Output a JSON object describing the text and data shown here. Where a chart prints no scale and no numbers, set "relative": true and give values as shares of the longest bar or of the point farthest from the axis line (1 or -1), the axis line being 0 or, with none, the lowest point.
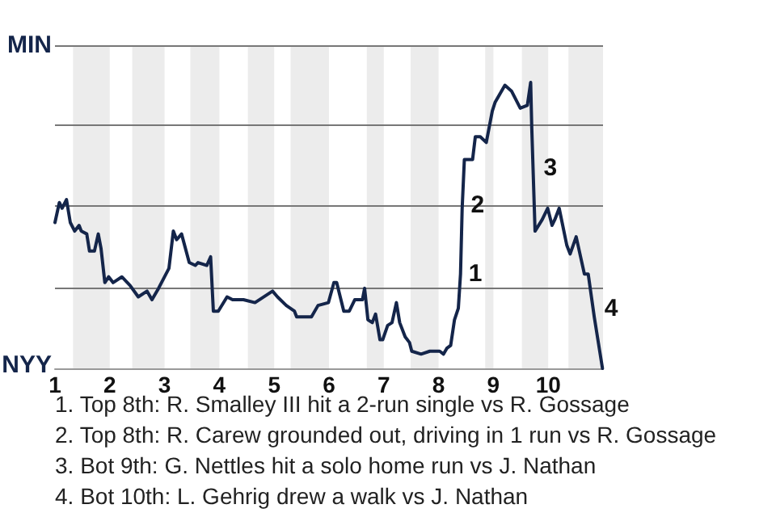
{
  "chart_data": {
    "type": "line",
    "relative": true,
    "x": [
      1.0,
      1.08,
      1.13,
      1.21,
      1.28,
      1.36,
      1.44,
      1.48,
      1.58,
      1.63,
      1.72,
      1.79,
      1.84,
      1.91,
      1.98,
      2.06,
      2.22,
      2.37,
      2.52,
      2.68,
      2.77,
      2.89,
      3.08,
      3.16,
      3.22,
      3.31,
      3.45,
      3.56,
      3.61,
      3.77,
      3.84,
      3.89,
      3.98,
      4.14,
      4.24,
      4.44,
      4.65,
      4.97,
      5.06,
      5.22,
      5.37,
      5.41,
      5.68,
      5.8,
      5.99,
      6.09,
      6.14,
      6.27,
      6.37,
      6.47,
      6.61,
      6.65,
      6.71,
      6.79,
      6.85,
      6.93,
      6.98,
      7.07,
      7.15,
      7.23,
      7.29,
      7.39,
      7.47,
      7.51,
      7.68,
      7.84,
      8.02,
      8.09,
      8.15,
      8.22,
      8.29,
      8.36,
      8.4,
      8.43,
      8.47,
      8.62,
      8.67,
      8.76,
      8.87,
      8.98,
      9.03,
      9.21,
      9.33,
      9.49,
      9.62,
      9.68,
      9.7,
      9.76,
      9.89,
      9.99,
      10.07,
      10.12,
      10.2,
      10.34,
      10.4,
      10.51,
      10.66,
      10.73,
      10.84,
      10.99
    ],
    "series": [
      {
        "color": "#14254a",
        "values": [
          0.51,
          0.58,
          0.56,
          0.59,
          0.51,
          0.48,
          0.5,
          0.48,
          0.47,
          0.41,
          0.41,
          0.47,
          0.42,
          0.3,
          0.32,
          0.3,
          0.32,
          0.29,
          0.25,
          0.27,
          0.24,
          0.28,
          0.35,
          0.48,
          0.45,
          0.47,
          0.37,
          0.36,
          0.37,
          0.36,
          0.39,
          0.2,
          0.2,
          0.25,
          0.24,
          0.24,
          0.23,
          0.27,
          0.25,
          0.22,
          0.2,
          0.18,
          0.18,
          0.22,
          0.23,
          0.3,
          0.3,
          0.2,
          0.2,
          0.24,
          0.24,
          0.28,
          0.17,
          0.16,
          0.19,
          0.1,
          0.1,
          0.15,
          0.16,
          0.23,
          0.16,
          0.11,
          0.09,
          0.06,
          0.05,
          0.06,
          0.06,
          0.05,
          0.07,
          0.08,
          0.17,
          0.21,
          0.33,
          0.56,
          0.73,
          0.73,
          0.81,
          0.81,
          0.79,
          0.9,
          0.93,
          0.99,
          0.97,
          0.91,
          0.92,
          1,
          0.84,
          0.48,
          0.52,
          0.56,
          0.5,
          0.52,
          0.56,
          0.43,
          0.4,
          0.46,
          0.33,
          0.33,
          0.18,
          0
        ]
      }
    ],
    "xlim": [
      1,
      11
    ],
    "xticks": [
      1,
      2,
      3,
      4,
      5,
      6,
      7,
      8,
      9,
      10
    ],
    "marker": "none",
    "line_style": "solid",
    "ref_lines": [
      {
        "axis": "y",
        "value": 0.28,
        "color": "#777777"
      },
      {
        "axis": "y",
        "value": 0.57,
        "color": "#777777"
      },
      {
        "axis": "y",
        "value": 0.85,
        "color": "#777777"
      },
      {
        "axis": "y",
        "value": 1.13,
        "label": "MIN",
        "color": "#777777"
      }
    ],
    "bands": [
      {
        "axis": "x",
        "from": 1.33,
        "to": 2,
        "color": "#ececec"
      },
      {
        "axis": "x",
        "from": 2.41,
        "to": 3,
        "color": "#ececec"
      },
      {
        "axis": "x",
        "from": 3.47,
        "to": 4,
        "color": "#ececec"
      },
      {
        "axis": "x",
        "from": 4.52,
        "to": 5,
        "color": "#ececec"
      },
      {
        "axis": "x",
        "from": 5.3,
        "to": 6,
        "color": "#ececec"
      },
      {
        "axis": "x",
        "from": 6.69,
        "to": 7,
        "color": "#ececec"
      },
      {
        "axis": "x",
        "from": 7.49,
        "to": 8,
        "color": "#ececec"
      },
      {
        "axis": "x",
        "from": 8.85,
        "to": 9,
        "color": "#ececec"
      },
      {
        "axis": "x",
        "from": 9.52,
        "to": 10,
        "color": "#ececec"
      },
      {
        "axis": "x",
        "from": 10.37,
        "to": 11,
        "color": "#ececec"
      }
    ],
    "annotations": [
      {
        "text": "1",
        "x": 8.4,
        "y": 0.33
      },
      {
        "text": "2",
        "x": 8.44,
        "y": 0.57
      },
      {
        "text": "3",
        "x": 9.77,
        "y": 0.7
      },
      {
        "text": "4",
        "x": 10.88,
        "y": 0.21
      },
      "NYY",
      "1. Top 8th: R. Smalley III hit a 2-run single vs R. Gossage",
      "2. Top 8th: R. Carew grounded out, driving in 1 run vs R. Gossage",
      "3. Bot 9th: G. Nettles hit a solo home run vs J. Nathan",
      "4. Bot 10th: L. Gehrig drew a walk vs J. Nathan"
    ]
  }
}
